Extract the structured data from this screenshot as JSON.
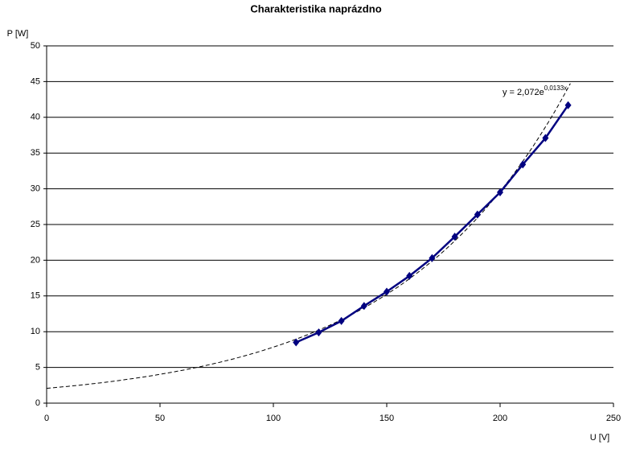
{
  "chart_data": {
    "type": "line",
    "title": "Charakteristika naprázdno",
    "y_label": "P [W]",
    "x_label": "U [V]",
    "x": [
      110,
      120,
      130,
      140,
      150,
      160,
      170,
      180,
      190,
      200,
      210,
      220,
      230
    ],
    "series": [
      {
        "name": "P",
        "color": "#000080",
        "values": [
          8.5,
          9.9,
          11.5,
          13.6,
          15.6,
          17.8,
          20.3,
          23.3,
          26.4,
          29.5,
          33.4,
          37.1,
          41.7
        ]
      }
    ],
    "trendline": {
      "type": "exponential",
      "coef": 2.072,
      "rate": 0.0133,
      "x_range": [
        0,
        231
      ],
      "label_prefix": "y = 2,072e",
      "label_exponent": "0,0133x",
      "color": "#000000"
    },
    "xlim": [
      0,
      250
    ],
    "xticks": [
      0,
      50,
      100,
      150,
      200,
      250
    ],
    "ylim": [
      0,
      50
    ],
    "yticks": [
      0,
      5,
      10,
      15,
      20,
      25,
      30,
      35,
      40,
      45,
      50
    ],
    "grid": true
  }
}
